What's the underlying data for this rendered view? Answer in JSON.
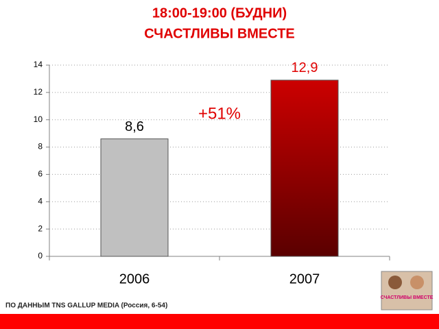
{
  "chart_data": {
    "type": "bar",
    "title": "18:00-19:00 (БУДНИ)",
    "subtitle": "СЧАСТЛИВЫ ВМЕСТЕ",
    "categories": [
      "2006",
      "2007"
    ],
    "values": [
      8.6,
      12.9
    ],
    "value_labels": [
      "8,6",
      "12,9"
    ],
    "colors": [
      "#c0c0c0",
      "#cc0000"
    ],
    "ylim": [
      0,
      14
    ],
    "yticks": [
      0,
      2,
      4,
      6,
      8,
      10,
      12,
      14
    ],
    "grid": true,
    "annotation": "+51%",
    "source": "ПО ДАННЫМ TNS GALLUP MEDIA (Россия, 6-54)",
    "poster_text": "СЧАСТЛИВЫ ВМЕСТЕ"
  }
}
